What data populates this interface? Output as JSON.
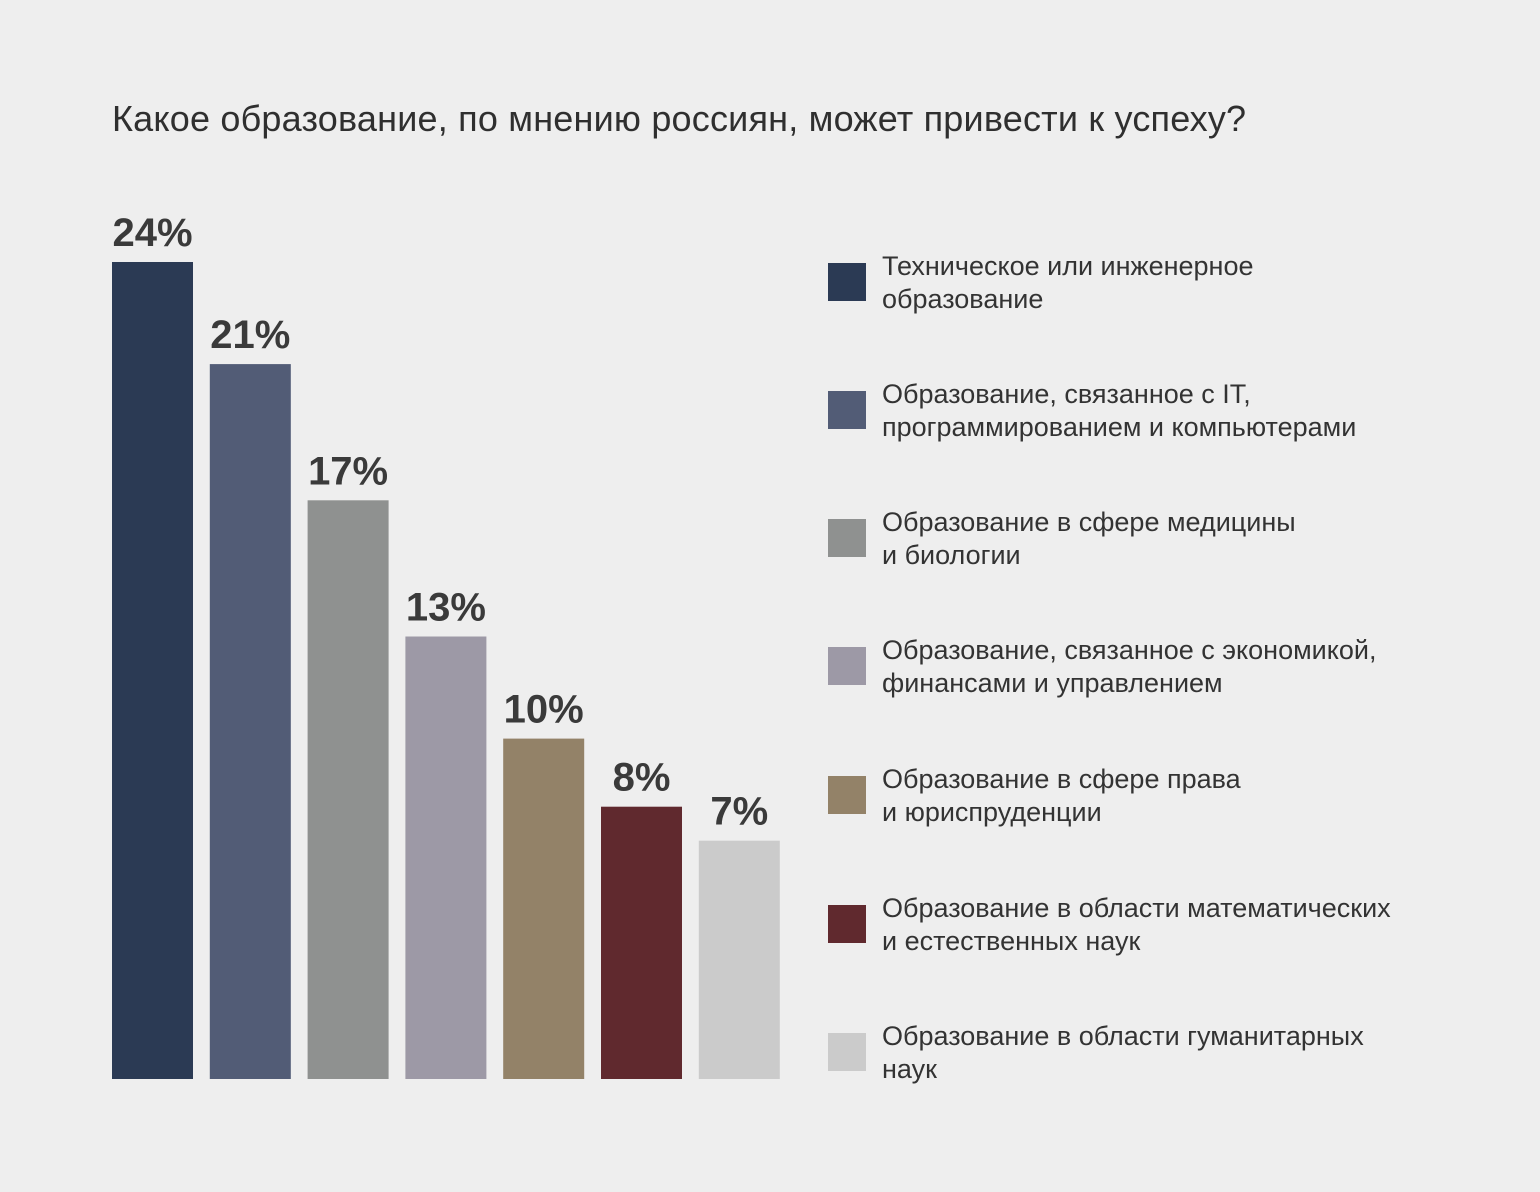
{
  "title": "Какое образование, по мнению россиян, может привести к успеху?",
  "chart_data": {
    "type": "bar",
    "title": "Какое образование, по мнению россиян, может привести к успеху?",
    "categories": [
      "Техническое или инженерное образование",
      "Образование, связанное с IT, программированием и компьютерами",
      "Образование в сфере медицины и биологии",
      "Образование, связанное с экономикой, финансами и управлением",
      "Образование в сфере права и юриспруденции",
      "Образование в области математических и естественных наук",
      "Образование в области гуманитарных наук"
    ],
    "values": [
      24,
      21,
      17,
      13,
      10,
      8,
      7
    ],
    "value_labels": [
      "24%",
      "21%",
      "17%",
      "13%",
      "10%",
      "8%",
      "7%"
    ],
    "colors": [
      "#2b3a54",
      "#525c76",
      "#8f9190",
      "#9d99a6",
      "#938268",
      "#60292e",
      "#cbcbcb"
    ],
    "ylim": [
      0,
      24
    ],
    "grid": false,
    "legend_position": "right"
  },
  "legend": [
    {
      "text": "Техническое или инженерное\nобразование",
      "color": "#2b3a54"
    },
    {
      "text": "Образование, связанное с IT,\nпрограммированием и компьютерами",
      "color": "#525c76"
    },
    {
      "text": "Образование в сфере медицины\nи биологии",
      "color": "#8f9190"
    },
    {
      "text": "Образование, связанное с экономикой,\nфинансами и управлением",
      "color": "#9d99a6"
    },
    {
      "text": "Образование в сфере права\nи юриспруденции",
      "color": "#938268"
    },
    {
      "text": "Образование в области математических\nи естественных наук",
      "color": "#60292e"
    },
    {
      "text": "Образование в области гуманитарных\nнаук",
      "color": "#cbcbcb"
    }
  ]
}
